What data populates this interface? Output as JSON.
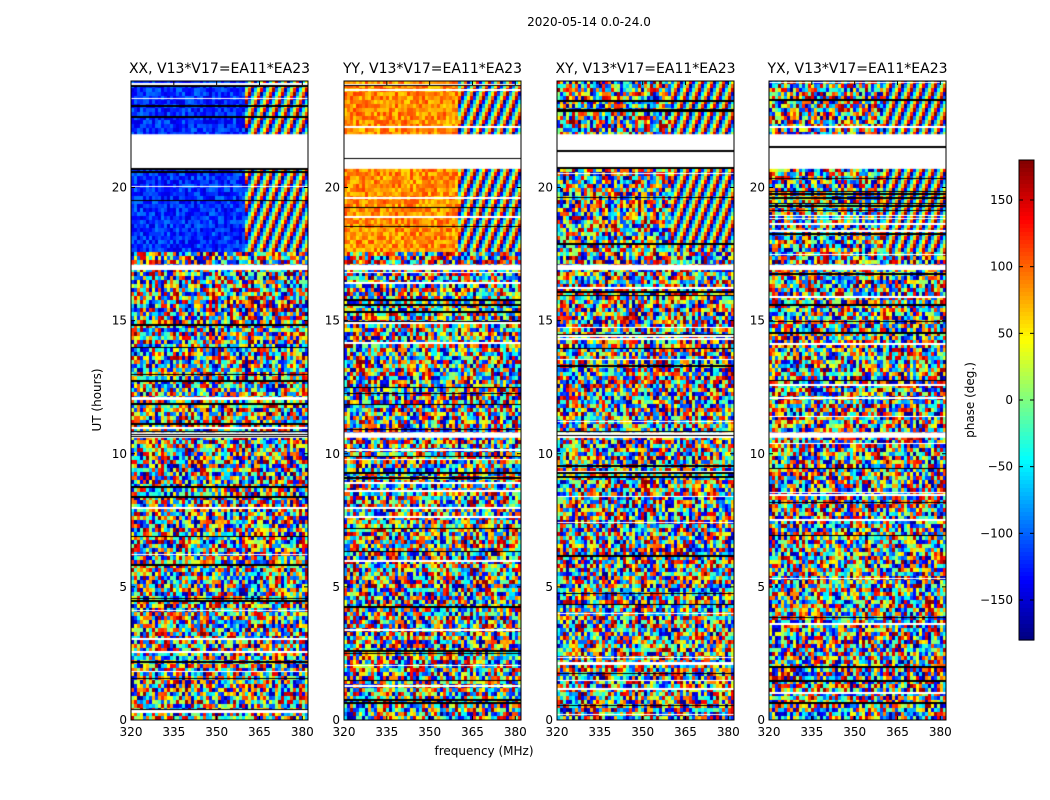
{
  "chart_data": {
    "type": "heatmap",
    "suptitle": "2020-05-14 0.0-24.0",
    "xlabel": "frequency (MHz)",
    "ylabel": "UT (hours)",
    "xlim": [
      320,
      382
    ],
    "ylim": [
      0,
      24
    ],
    "xticks": [
      320,
      335,
      350,
      365,
      380
    ],
    "yticks": [
      0,
      5,
      10,
      15,
      20
    ],
    "panels": [
      {
        "title": "XX, V13*V17=EA11*EA23",
        "coherent_phase_deg": -120
      },
      {
        "title": "YY, V13*V17=EA11*EA23",
        "coherent_phase_deg": 85
      },
      {
        "title": "XY, V13*V17=EA11*EA23",
        "coherent_phase_deg": null
      },
      {
        "title": "YX, V13*V17=EA11*EA23",
        "coherent_phase_deg": null
      }
    ],
    "colorbar": {
      "label": "phase (deg.)",
      "range": [
        -180,
        180
      ],
      "ticks": [
        -150,
        -100,
        -50,
        0,
        50,
        100,
        150
      ],
      "colormap": "jet"
    },
    "data_gaps_ut": [
      [
        22.0,
        20.7
      ],
      [
        17.1,
        16.9
      ],
      [
        10.8,
        10.6
      ]
    ]
  }
}
